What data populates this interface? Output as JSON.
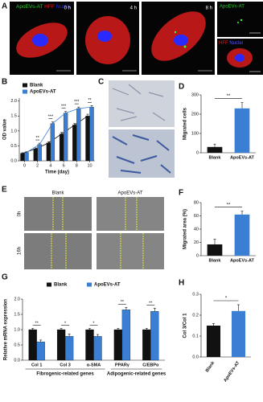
{
  "panel_letters": [
    "A",
    "B",
    "C",
    "D",
    "E",
    "F",
    "G",
    "H"
  ],
  "panel_a": {
    "legend": [
      "ApoEVs-AT",
      "HFF",
      "Nuclei"
    ],
    "timepoints": [
      "0 h",
      "4 h",
      "8 h"
    ],
    "inset_labels": [
      "ApoEVs-AT",
      "HFF",
      "Nuclei"
    ]
  },
  "panel_e": {
    "columns": [
      "Blank",
      "ApoEVs-AT"
    ],
    "rows": [
      "0h",
      "16h"
    ]
  },
  "chart_data": [
    {
      "type": "bar",
      "connect": true,
      "legend": "top-left",
      "x": [
        0,
        2,
        4,
        6,
        8,
        10
      ],
      "xlim": [
        -0.8,
        10.8
      ],
      "xticks": [
        0,
        2,
        4,
        6,
        8,
        10
      ],
      "xlabel": "Time (day)",
      "ylabel": "OD value",
      "ylim": [
        0,
        2.1
      ],
      "yticks": [
        {
          "value": 0,
          "label": "0.0"
        },
        {
          "value": 0.5,
          "label": "0.5"
        },
        {
          "value": 1,
          "label": "1.0"
        },
        {
          "value": 1.5,
          "label": "1.5"
        },
        {
          "value": 2,
          "label": "2.0"
        }
      ],
      "series": [
        {
          "name": "Blank",
          "color": "#111111",
          "values": [
            0.25,
            0.4,
            0.6,
            0.9,
            1.2,
            1.5
          ],
          "errors": [
            0.02,
            0.03,
            0.04,
            0.05,
            0.05,
            0.06
          ]
        },
        {
          "name": "ApoEVs-AT",
          "color": "#3b7fd4",
          "values": [
            0.28,
            0.55,
            1.25,
            1.6,
            1.75,
            1.8
          ],
          "errors": [
            0.02,
            0.04,
            0.05,
            0.05,
            0.05,
            0.05
          ]
        }
      ],
      "significance": [
        null,
        "**",
        "***",
        "***",
        "***",
        "**"
      ]
    },
    {
      "type": "bar",
      "categories": [
        "Blank",
        "ApoEVs-AT"
      ],
      "values": [
        30,
        230
      ],
      "errors": [
        15,
        30
      ],
      "colors": [
        "#111111",
        "#3b7fd4"
      ],
      "ylabel": "Migrated cells",
      "ylim": [
        0,
        300
      ],
      "yticks": [
        0,
        100,
        200,
        300
      ],
      "annotation": "**"
    },
    {
      "type": "bar",
      "categories": [
        "Blank",
        "ApoEVs-AT"
      ],
      "values": [
        17,
        62
      ],
      "errors": [
        8,
        5
      ],
      "colors": [
        "#111111",
        "#3b7fd4"
      ],
      "ylabel": "Migrated area (%)",
      "ylim": [
        0,
        80
      ],
      "yticks": [
        0,
        20,
        40,
        60,
        80
      ],
      "annotation": "**"
    },
    {
      "type": "bar",
      "legend": "top",
      "categories": [
        "Col 1",
        "Col 3",
        "α-SMA",
        "PPARγ",
        "C/EBPα"
      ],
      "ylabel": "Relative mRNA expression",
      "ylim": [
        0,
        2
      ],
      "yticks": [
        {
          "value": 0,
          "label": "0.0"
        },
        {
          "value": 0.5,
          "label": "0.5"
        },
        {
          "value": 1,
          "label": "1.0"
        },
        {
          "value": 1.5,
          "label": "1.5"
        },
        {
          "value": 2,
          "label": "2.0"
        }
      ],
      "series": [
        {
          "name": "Blank",
          "color": "#111111",
          "values": [
            1,
            1,
            1,
            1,
            1
          ],
          "errors": [
            0.04,
            0.04,
            0.04,
            0.04,
            0.04
          ]
        },
        {
          "name": "ApoEVs-AT",
          "color": "#3b7fd4",
          "values": [
            0.6,
            0.78,
            0.78,
            1.65,
            1.6
          ],
          "errors": [
            0.06,
            0.08,
            0.06,
            0.08,
            0.1
          ]
        }
      ],
      "significance": [
        "**",
        "*",
        "*",
        "**",
        "**"
      ],
      "group_labels": [
        "Fibrogenic-related genes",
        "Adipogenic-related genes"
      ]
    },
    {
      "type": "bar",
      "rotate_labels": true,
      "categories": [
        "Blank",
        "ApoEVs-AT"
      ],
      "values": [
        0.15,
        0.22
      ],
      "errors": [
        0.01,
        0.03
      ],
      "colors": [
        "#111111",
        "#3b7fd4"
      ],
      "ylabel": "Col 3/Col 1",
      "ylim": [
        0,
        0.3
      ],
      "yticks": [
        {
          "value": 0,
          "label": "0.0"
        },
        0.1,
        0.2,
        0.3
      ],
      "annotation": "*"
    }
  ]
}
